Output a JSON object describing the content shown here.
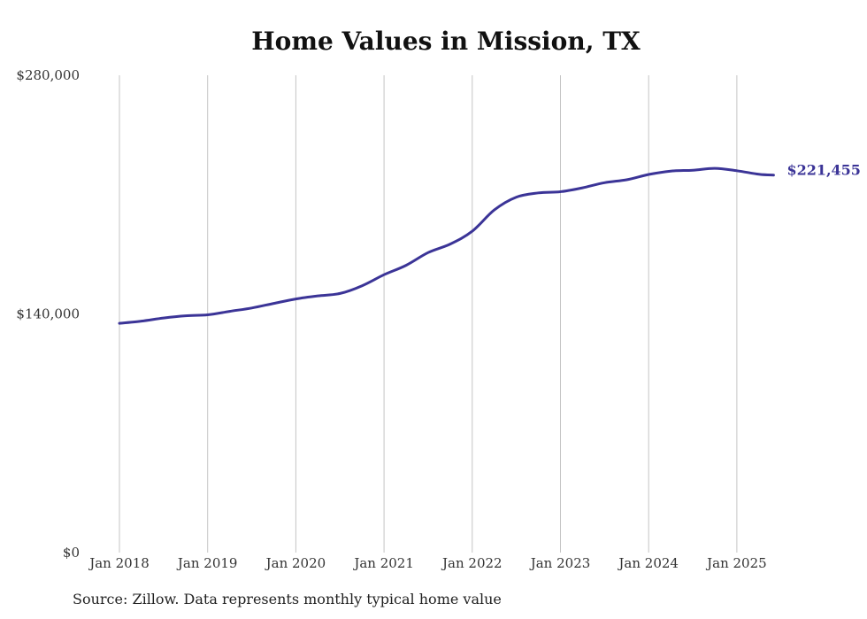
{
  "title": "Home Values in Mission, TX",
  "source": "Source: Zillow. Data represents monthly typical home value",
  "colors": {
    "line": "#3b3497",
    "grid": "#c4c4c4",
    "text": "#333333"
  },
  "chart_data": {
    "type": "line",
    "title": "Home Values in Mission, TX",
    "xlabel": "",
    "ylabel": "",
    "ylim": [
      0,
      280000
    ],
    "y_ticks": [
      0,
      140000,
      280000
    ],
    "y_tick_labels": [
      "$0",
      "$140,000",
      "$280,000"
    ],
    "x_ticks": [
      "2018-01",
      "2019-01",
      "2020-01",
      "2021-01",
      "2022-01",
      "2023-01",
      "2024-01",
      "2025-01"
    ],
    "x_tick_labels": [
      "Jan 2018",
      "Jan 2019",
      "Jan 2020",
      "Jan 2021",
      "Jan 2022",
      "Jan 2023",
      "Jan 2024",
      "Jan 2025"
    ],
    "grid": "vertical",
    "end_label": "$221,455",
    "series": [
      {
        "values": [
          {
            "x": "2018-01",
            "y": 134500
          },
          {
            "x": "2018-04",
            "y": 135800
          },
          {
            "x": "2018-07",
            "y": 137600
          },
          {
            "x": "2018-10",
            "y": 138900
          },
          {
            "x": "2019-01",
            "y": 139500
          },
          {
            "x": "2019-04",
            "y": 141500
          },
          {
            "x": "2019-07",
            "y": 143500
          },
          {
            "x": "2019-10",
            "y": 146200
          },
          {
            "x": "2020-01",
            "y": 148800
          },
          {
            "x": "2020-04",
            "y": 150600
          },
          {
            "x": "2020-07",
            "y": 152000
          },
          {
            "x": "2020-10",
            "y": 156500
          },
          {
            "x": "2021-01",
            "y": 163000
          },
          {
            "x": "2021-04",
            "y": 168500
          },
          {
            "x": "2021-07",
            "y": 176000
          },
          {
            "x": "2021-10",
            "y": 181000
          },
          {
            "x": "2022-01",
            "y": 188500
          },
          {
            "x": "2022-04",
            "y": 201000
          },
          {
            "x": "2022-07",
            "y": 208500
          },
          {
            "x": "2022-10",
            "y": 211000
          },
          {
            "x": "2023-01",
            "y": 211700
          },
          {
            "x": "2023-04",
            "y": 214000
          },
          {
            "x": "2023-07",
            "y": 217000
          },
          {
            "x": "2023-10",
            "y": 218700
          },
          {
            "x": "2024-01",
            "y": 221800
          },
          {
            "x": "2024-04",
            "y": 223800
          },
          {
            "x": "2024-07",
            "y": 224300
          },
          {
            "x": "2024-10",
            "y": 225400
          },
          {
            "x": "2025-01",
            "y": 224000
          },
          {
            "x": "2025-04",
            "y": 221900
          },
          {
            "x": "2025-06",
            "y": 221455
          }
        ]
      }
    ]
  }
}
